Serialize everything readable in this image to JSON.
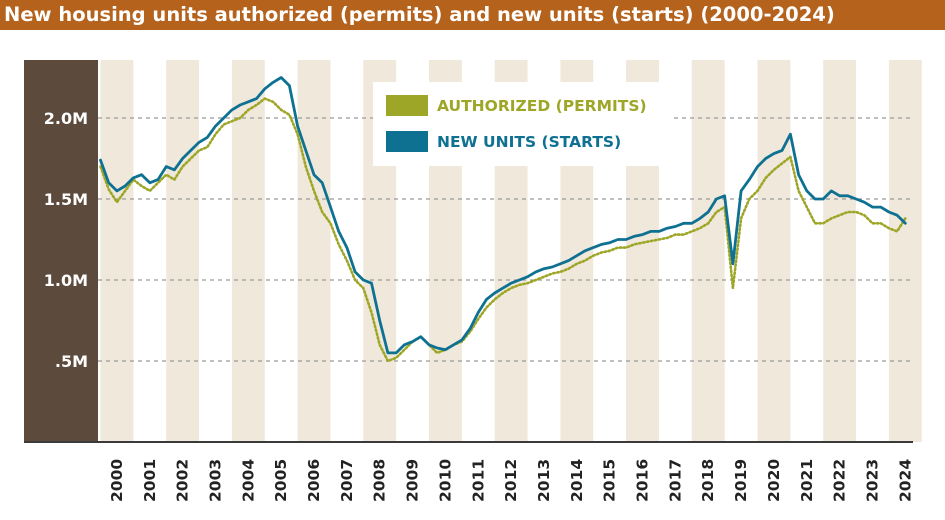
{
  "header": {
    "title": "New housing units authorized (permits) and new units (starts) (2000-2024)"
  },
  "colors": {
    "header_bg": "#b5621c",
    "axis_panel": "#5c4a3c",
    "band": "#efe8db",
    "permits": "#9ea627",
    "starts": "#0e7192",
    "grid": "#9a9a9a"
  },
  "chart_data": {
    "type": "line",
    "title": "New housing units authorized (permits) and new units (starts) (2000-2024)",
    "xlabel": "",
    "ylabel": "",
    "xlim": [
      1999.9,
      2024.7
    ],
    "ylim": [
      0,
      2.5
    ],
    "x_ticks": [
      "2000",
      "2001",
      "2002",
      "2003",
      "2004",
      "2005",
      "2006",
      "2007",
      "2008",
      "2009",
      "2010",
      "2011",
      "2012",
      "2013",
      "2014",
      "2015",
      "2016",
      "2017",
      "2018",
      "2019",
      "2020",
      "2021",
      "2022",
      "2023",
      "2024"
    ],
    "y_ticks": [
      {
        "value": 0.5,
        "label": ".5M"
      },
      {
        "value": 1.0,
        "label": "1.0M"
      },
      {
        "value": 1.5,
        "label": "1.5M"
      },
      {
        "value": 2.0,
        "label": "2.0M"
      }
    ],
    "grid": {
      "horizontal": true,
      "alternating_year_bands": true
    },
    "legend": {
      "position": "top-center",
      "entries": [
        {
          "label": "AUTHORIZED (PERMITS)",
          "color": "#9ea627",
          "style": "dotted"
        },
        {
          "label": "NEW UNITS (STARTS)",
          "color": "#0e7192",
          "style": "solid"
        }
      ]
    },
    "series": [
      {
        "name": "AUTHORIZED (PERMITS)",
        "style": "dotted",
        "color": "#9ea627",
        "x": [
          2000.0,
          2000.25,
          2000.5,
          2000.75,
          2001.0,
          2001.25,
          2001.5,
          2001.75,
          2002.0,
          2002.25,
          2002.5,
          2002.75,
          2003.0,
          2003.25,
          2003.5,
          2003.75,
          2004.0,
          2004.25,
          2004.5,
          2004.75,
          2005.0,
          2005.25,
          2005.5,
          2005.75,
          2006.0,
          2006.25,
          2006.5,
          2006.75,
          2007.0,
          2007.25,
          2007.5,
          2007.75,
          2008.0,
          2008.25,
          2008.5,
          2008.75,
          2009.0,
          2009.25,
          2009.5,
          2009.75,
          2010.0,
          2010.25,
          2010.5,
          2010.75,
          2011.0,
          2011.25,
          2011.5,
          2011.75,
          2012.0,
          2012.25,
          2012.5,
          2012.75,
          2013.0,
          2013.25,
          2013.5,
          2013.75,
          2014.0,
          2014.25,
          2014.5,
          2014.75,
          2015.0,
          2015.25,
          2015.5,
          2015.75,
          2016.0,
          2016.25,
          2016.5,
          2016.75,
          2017.0,
          2017.25,
          2017.5,
          2017.75,
          2018.0,
          2018.25,
          2018.5,
          2018.75,
          2019.0,
          2019.25,
          2019.5,
          2019.75,
          2020.0,
          2020.25,
          2020.5,
          2020.75,
          2021.0,
          2021.25,
          2021.5,
          2021.75,
          2022.0,
          2022.25,
          2022.5,
          2022.75,
          2023.0,
          2023.25,
          2023.5,
          2023.75,
          2024.0,
          2024.25,
          2024.5
        ],
        "values": [
          1.7,
          1.56,
          1.48,
          1.55,
          1.62,
          1.58,
          1.55,
          1.6,
          1.65,
          1.62,
          1.7,
          1.75,
          1.8,
          1.82,
          1.9,
          1.96,
          1.98,
          2.0,
          2.05,
          2.08,
          2.12,
          2.1,
          2.05,
          2.02,
          1.9,
          1.7,
          1.55,
          1.42,
          1.35,
          1.22,
          1.12,
          1.0,
          0.95,
          0.8,
          0.6,
          0.5,
          0.52,
          0.57,
          0.62,
          0.65,
          0.6,
          0.55,
          0.57,
          0.6,
          0.62,
          0.68,
          0.76,
          0.83,
          0.88,
          0.92,
          0.95,
          0.97,
          0.98,
          1.0,
          1.02,
          1.04,
          1.05,
          1.07,
          1.1,
          1.12,
          1.15,
          1.17,
          1.18,
          1.2,
          1.2,
          1.22,
          1.23,
          1.24,
          1.25,
          1.26,
          1.28,
          1.28,
          1.3,
          1.32,
          1.35,
          1.42,
          1.45,
          0.95,
          1.38,
          1.5,
          1.55,
          1.63,
          1.68,
          1.72,
          1.76,
          1.55,
          1.45,
          1.35,
          1.35,
          1.38,
          1.4,
          1.42,
          1.42,
          1.4,
          1.35,
          1.35,
          1.32,
          1.3,
          1.38
        ]
      },
      {
        "name": "NEW UNITS (STARTS)",
        "style": "solid",
        "color": "#0e7192",
        "x": [
          2000.0,
          2000.25,
          2000.5,
          2000.75,
          2001.0,
          2001.25,
          2001.5,
          2001.75,
          2002.0,
          2002.25,
          2002.5,
          2002.75,
          2003.0,
          2003.25,
          2003.5,
          2003.75,
          2004.0,
          2004.25,
          2004.5,
          2004.75,
          2005.0,
          2005.25,
          2005.5,
          2005.75,
          2006.0,
          2006.25,
          2006.5,
          2006.75,
          2007.0,
          2007.25,
          2007.5,
          2007.75,
          2008.0,
          2008.25,
          2008.5,
          2008.75,
          2009.0,
          2009.25,
          2009.5,
          2009.75,
          2010.0,
          2010.25,
          2010.5,
          2010.75,
          2011.0,
          2011.25,
          2011.5,
          2011.75,
          2012.0,
          2012.25,
          2012.5,
          2012.75,
          2013.0,
          2013.25,
          2013.5,
          2013.75,
          2014.0,
          2014.25,
          2014.5,
          2014.75,
          2015.0,
          2015.25,
          2015.5,
          2015.75,
          2016.0,
          2016.25,
          2016.5,
          2016.75,
          2017.0,
          2017.25,
          2017.5,
          2017.75,
          2018.0,
          2018.25,
          2018.5,
          2018.75,
          2019.0,
          2019.25,
          2019.5,
          2019.75,
          2020.0,
          2020.25,
          2020.5,
          2020.75,
          2021.0,
          2021.25,
          2021.5,
          2021.75,
          2022.0,
          2022.25,
          2022.5,
          2022.75,
          2023.0,
          2023.25,
          2023.5,
          2023.75,
          2024.0,
          2024.25,
          2024.5
        ],
        "values": [
          1.74,
          1.6,
          1.55,
          1.58,
          1.63,
          1.65,
          1.6,
          1.62,
          1.7,
          1.68,
          1.75,
          1.8,
          1.85,
          1.88,
          1.95,
          2.0,
          2.05,
          2.08,
          2.1,
          2.12,
          2.18,
          2.22,
          2.25,
          2.2,
          1.95,
          1.8,
          1.65,
          1.6,
          1.45,
          1.3,
          1.2,
          1.05,
          1.0,
          0.98,
          0.75,
          0.55,
          0.55,
          0.6,
          0.62,
          0.65,
          0.6,
          0.58,
          0.57,
          0.6,
          0.63,
          0.7,
          0.8,
          0.88,
          0.92,
          0.95,
          0.98,
          1.0,
          1.02,
          1.05,
          1.07,
          1.08,
          1.1,
          1.12,
          1.15,
          1.18,
          1.2,
          1.22,
          1.23,
          1.25,
          1.25,
          1.27,
          1.28,
          1.3,
          1.3,
          1.32,
          1.33,
          1.35,
          1.35,
          1.38,
          1.42,
          1.5,
          1.52,
          1.1,
          1.55,
          1.62,
          1.7,
          1.75,
          1.78,
          1.8,
          1.9,
          1.65,
          1.55,
          1.5,
          1.5,
          1.55,
          1.52,
          1.52,
          1.5,
          1.48,
          1.45,
          1.45,
          1.42,
          1.4,
          1.35
        ]
      }
    ]
  }
}
